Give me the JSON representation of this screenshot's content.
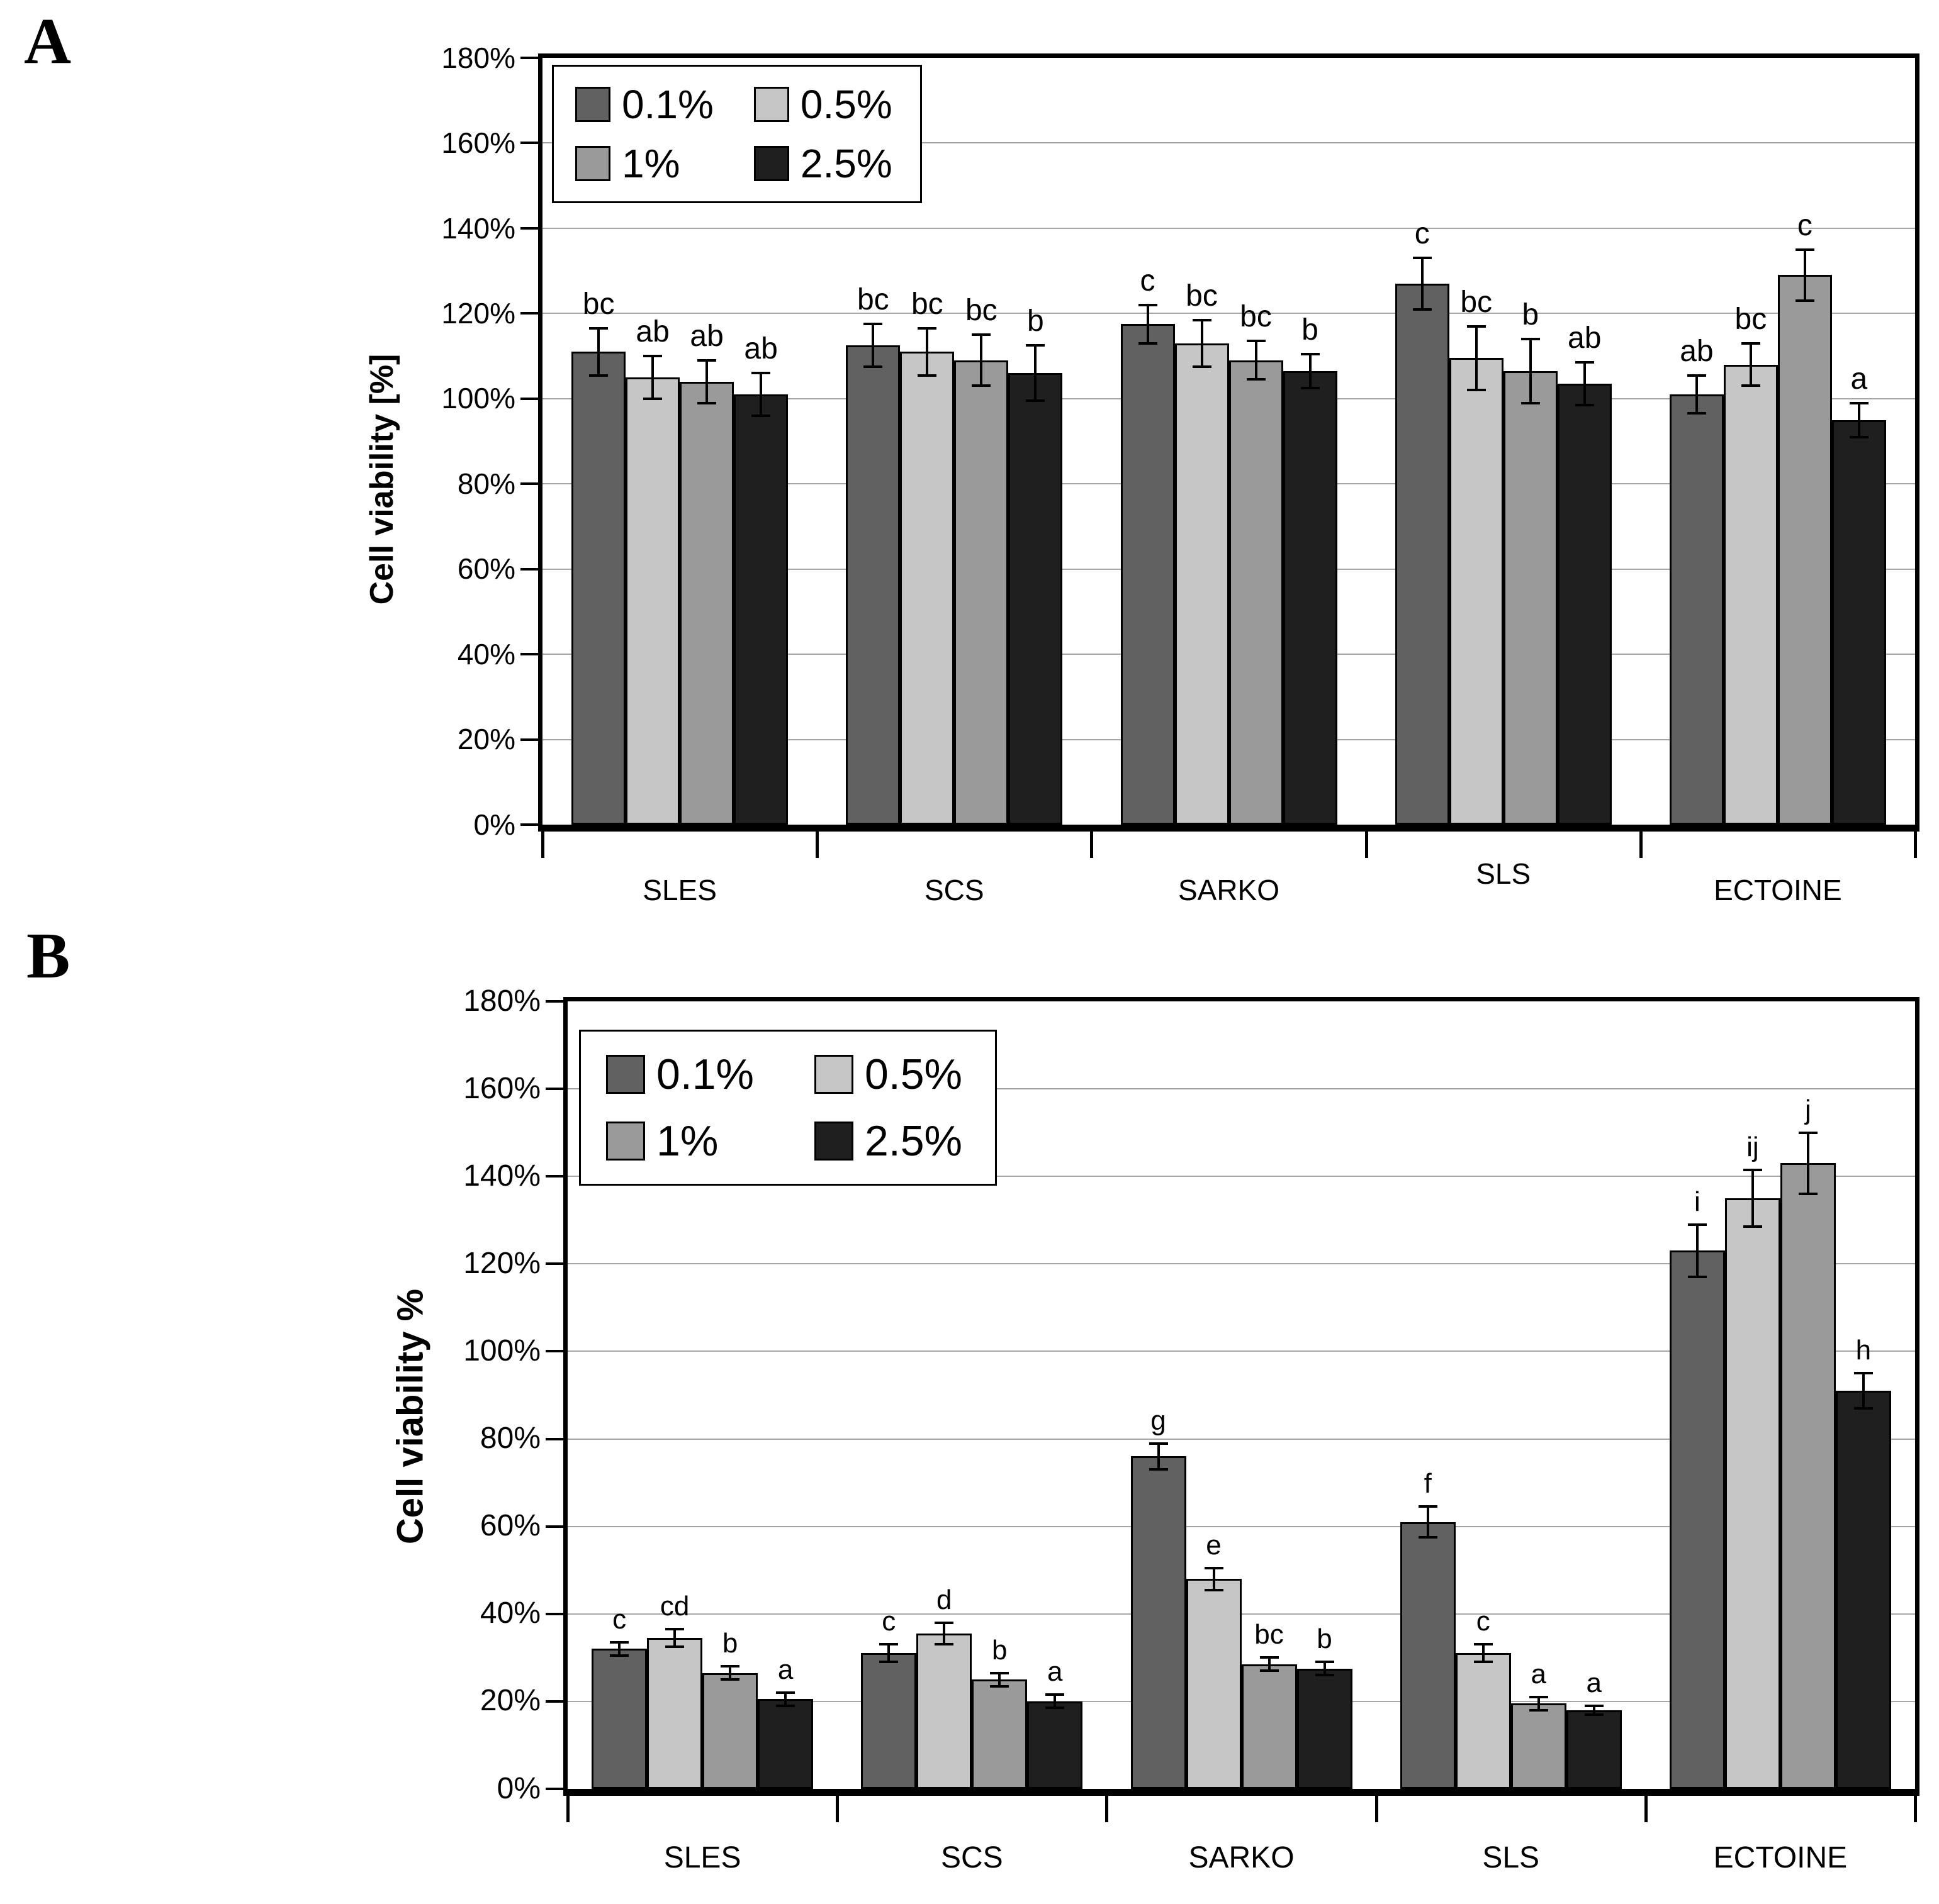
{
  "figure": {
    "background": "#ffffff",
    "panel_count": 2
  },
  "chart_data": [
    {
      "type": "bar",
      "panel_label": "A",
      "title": "",
      "xlabel": "",
      "ylabel": "Cell viability [%]",
      "ylim": [
        0,
        180
      ],
      "ytick_step": 20,
      "yticks": [
        "180%",
        "160%",
        "140%",
        "120%",
        "100%",
        "80%",
        "60%",
        "40%",
        "20%",
        "0%"
      ],
      "grid": true,
      "gridline_color": "#a6a6a6",
      "outline_color": "#000000",
      "legend_position": "top-left-inside",
      "legend": [
        "0.1%",
        "0.5%",
        "1%",
        "2.5%"
      ],
      "series_colors": [
        "#616161",
        "#c6c6c6",
        "#9a9a9a",
        "#1f1f1f"
      ],
      "categories": [
        "SLES",
        "SCS",
        "SARKO",
        "SLS",
        "ECTOINE"
      ],
      "xlabel_raised": [
        false,
        false,
        false,
        true,
        false
      ],
      "series": [
        {
          "name": "0.1%",
          "values": [
            111,
            112.5,
            117.5,
            127,
            101
          ],
          "errors": [
            5.5,
            5,
            4.5,
            6,
            4.5
          ],
          "letters": [
            "bc",
            "bc",
            "c",
            "c",
            "ab"
          ]
        },
        {
          "name": "0.5%",
          "values": [
            105,
            111,
            113,
            109.5,
            108
          ],
          "errors": [
            5,
            5.5,
            5.5,
            7.5,
            5
          ],
          "letters": [
            "ab",
            "bc",
            "bc",
            "bc",
            "bc"
          ]
        },
        {
          "name": "1%",
          "values": [
            104,
            109,
            109,
            106.5,
            129
          ],
          "errors": [
            5,
            6,
            4.5,
            7.5,
            6
          ],
          "letters": [
            "ab",
            "bc",
            "bc",
            "b",
            "c"
          ]
        },
        {
          "name": "2.5%",
          "values": [
            101,
            106,
            106.5,
            103.5,
            95
          ],
          "errors": [
            5,
            6.5,
            4,
            5,
            4
          ],
          "letters": [
            "ab",
            "b",
            "b",
            "ab",
            "a"
          ]
        }
      ]
    },
    {
      "type": "bar",
      "panel_label": "B",
      "title": "",
      "xlabel": "",
      "ylabel": "Cell viability %",
      "ylim": [
        0,
        180
      ],
      "ytick_step": 20,
      "yticks": [
        "180%",
        "160%",
        "140%",
        "120%",
        "100%",
        "80%",
        "60%",
        "40%",
        "20%",
        "0%"
      ],
      "grid": true,
      "gridline_color": "#a6a6a6",
      "outline_color": "#000000",
      "legend_position": "top-left-inside",
      "legend": [
        "0.1%",
        "0.5%",
        "1%",
        "2.5%"
      ],
      "series_colors": [
        "#616161",
        "#c6c6c6",
        "#9a9a9a",
        "#1f1f1f"
      ],
      "categories": [
        "SLES",
        "SCS",
        "SARKO",
        "SLS",
        "ECTOINE"
      ],
      "xlabel_raised": [
        false,
        false,
        false,
        false,
        false
      ],
      "series": [
        {
          "name": "0.1%",
          "values": [
            32,
            31,
            76,
            61,
            123
          ],
          "errors": [
            1.5,
            2,
            3,
            3.5,
            6
          ],
          "letters": [
            "c",
            "c",
            "g",
            "f",
            "i"
          ]
        },
        {
          "name": "0.5%",
          "values": [
            34.5,
            35.5,
            48,
            31,
            135
          ],
          "errors": [
            2,
            2.5,
            2.5,
            2,
            6.5
          ],
          "letters": [
            "cd",
            "d",
            "e",
            "c",
            "ij"
          ]
        },
        {
          "name": "1%",
          "values": [
            26.5,
            25,
            28.5,
            19.5,
            143
          ],
          "errors": [
            1.5,
            1.5,
            1.5,
            1.5,
            7
          ],
          "letters": [
            "b",
            "b",
            "bc",
            "a",
            "j"
          ]
        },
        {
          "name": "2.5%",
          "values": [
            20.5,
            20,
            27.5,
            18,
            91
          ],
          "errors": [
            1.5,
            1.5,
            1.5,
            1,
            4
          ],
          "letters": [
            "a",
            "a",
            "b",
            "a",
            "h"
          ]
        }
      ]
    }
  ]
}
